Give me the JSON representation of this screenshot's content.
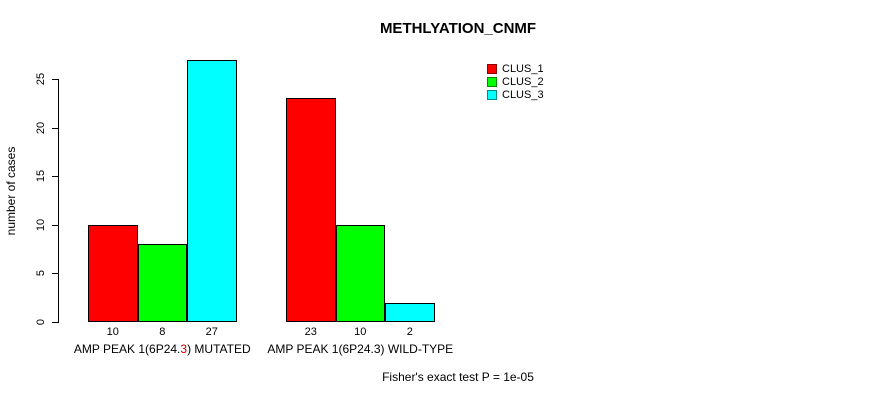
{
  "title": "METHLYATION_CNMF",
  "y_axis": {
    "label": "number of cases"
  },
  "footer": "Fisher's exact test P = 1e-05",
  "legend": {
    "items": [
      {
        "label": "CLUS_1",
        "color": "#ff0000"
      },
      {
        "label": "CLUS_2",
        "color": "#00ff00"
      },
      {
        "label": "CLUS_3",
        "color": "#00ffff"
      }
    ]
  },
  "x_labels": [
    {
      "parts": [
        {
          "text": "AMP PEAK 1(6P24.",
          "color": "#000000"
        },
        {
          "text": "3",
          "color": "#cc0000"
        },
        {
          "text": ") MUTATED",
          "color": "#000000"
        }
      ]
    },
    {
      "parts": [
        {
          "text": "AMP PEAK 1(6P24.3) WILD-TYPE",
          "color": "#000000"
        }
      ]
    }
  ],
  "chart_data": {
    "type": "bar",
    "title": "METHLYATION_CNMF",
    "xlabel": "",
    "ylabel": "number of cases",
    "categories": [
      "AMP PEAK 1(6P24.3) MUTATED",
      "AMP PEAK 1(6P24.3) WILD-TYPE"
    ],
    "series": [
      {
        "name": "CLUS_1",
        "color": "#ff0000",
        "values": [
          10,
          23
        ]
      },
      {
        "name": "CLUS_2",
        "color": "#00ff00",
        "values": [
          8,
          10
        ]
      },
      {
        "name": "CLUS_3",
        "color": "#00ffff",
        "values": [
          27,
          2
        ]
      }
    ],
    "ylim": [
      0,
      27
    ],
    "yticks": [
      0,
      5,
      10,
      15,
      20,
      25
    ],
    "grid": false,
    "legend_position": "top-right",
    "show_values_under_bars": true,
    "annotation": "Fisher's exact test P = 1e-05"
  }
}
